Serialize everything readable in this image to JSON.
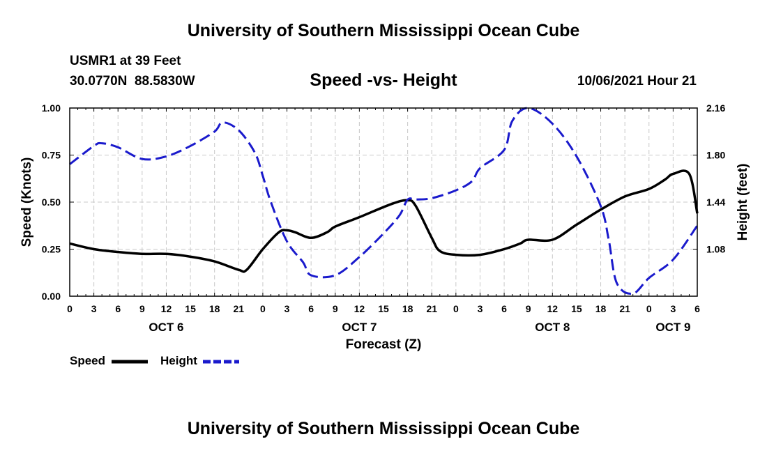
{
  "page": {
    "top_title": "University of Southern Mississippi Ocean Cube",
    "bottom_title": "University of Southern Mississippi Ocean Cube",
    "station_line": "USMR1 at 39 Feet",
    "coords_line": "30.0770N  88.5830W",
    "timestamp": "10/06/2021 Hour 21"
  },
  "colors": {
    "speed": "#000000",
    "height": "#1a1acc",
    "grid": "#c8c8c8"
  },
  "chart_data": {
    "type": "line",
    "title": "Speed -vs- Height",
    "xlabel": "Forecast (Z)",
    "ylabel": "Speed (Knots)",
    "y2label": "Height (feet)",
    "xlim": [
      0,
      78
    ],
    "ylim": [
      0,
      1.0
    ],
    "y2lim": [
      0.72,
      2.16
    ],
    "yticks": [
      "0.00",
      "0.25",
      "0.50",
      "0.75",
      "1.00"
    ],
    "y2ticks": [
      "1.08",
      "1.44",
      "1.80",
      "2.16"
    ],
    "xticks": [
      "0",
      "3",
      "6",
      "9",
      "12",
      "15",
      "18",
      "21",
      "0",
      "3",
      "6",
      "9",
      "12",
      "15",
      "18",
      "21",
      "0",
      "3",
      "6",
      "9",
      "12",
      "15",
      "18",
      "21",
      "0",
      "3",
      "6"
    ],
    "day_labels": [
      {
        "label": "OCT 6",
        "hour": 12
      },
      {
        "label": "OCT 7",
        "hour": 36
      },
      {
        "label": "OCT 8",
        "hour": 60
      },
      {
        "label": "OCT 9",
        "hour": 75
      }
    ],
    "series": [
      {
        "name": "Speed",
        "axis": "left",
        "style": "solid",
        "x": [
          0,
          3,
          6,
          9,
          12,
          15,
          18,
          21,
          22,
          24,
          26,
          27,
          28,
          30,
          32,
          33,
          36,
          40,
          42,
          43,
          45,
          46,
          48,
          51,
          54,
          56,
          57,
          60,
          63,
          66,
          69,
          72,
          74,
          75,
          77,
          78
        ],
        "y": [
          0.28,
          0.25,
          0.235,
          0.225,
          0.225,
          0.21,
          0.185,
          0.14,
          0.14,
          0.25,
          0.34,
          0.35,
          0.34,
          0.31,
          0.34,
          0.37,
          0.42,
          0.49,
          0.51,
          0.48,
          0.31,
          0.24,
          0.22,
          0.22,
          0.25,
          0.28,
          0.3,
          0.3,
          0.38,
          0.46,
          0.53,
          0.57,
          0.62,
          0.65,
          0.65,
          0.44
        ]
      },
      {
        "name": "Height",
        "axis": "right",
        "style": "dashed",
        "x": [
          0,
          3,
          4,
          6,
          9,
          12,
          15,
          18,
          19,
          21,
          23,
          24,
          25,
          27,
          29,
          30,
          33,
          36,
          39,
          41,
          42,
          43,
          45,
          48,
          50,
          51,
          54,
          55,
          57,
          60,
          63,
          66,
          67,
          68,
          70,
          72,
          75,
          78
        ],
        "y": [
          1.73,
          1.87,
          1.89,
          1.86,
          1.77,
          1.79,
          1.87,
          1.98,
          2.05,
          1.99,
          1.82,
          1.64,
          1.44,
          1.14,
          0.98,
          0.88,
          0.88,
          1.02,
          1.2,
          1.34,
          1.46,
          1.46,
          1.47,
          1.53,
          1.6,
          1.7,
          1.84,
          2.06,
          2.16,
          2.04,
          1.79,
          1.41,
          1.15,
          0.82,
          0.74,
          0.86,
          1.0,
          1.26
        ]
      }
    ],
    "legend": [
      "Speed",
      "Height"
    ]
  }
}
